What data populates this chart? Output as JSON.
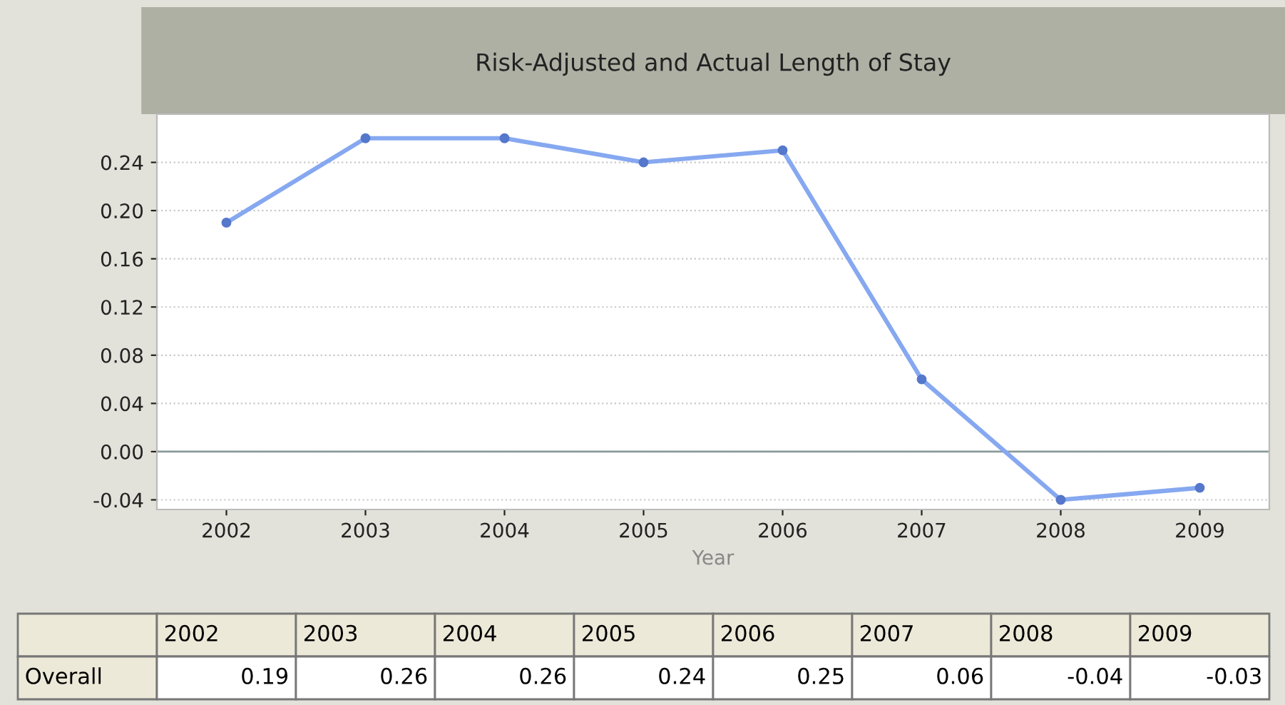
{
  "chart_data": {
    "type": "line",
    "title": "Risk-Adjusted and Actual Length of Stay",
    "xlabel": "Year",
    "categories": [
      "2002",
      "2003",
      "2004",
      "2005",
      "2006",
      "2007",
      "2008",
      "2009"
    ],
    "series": [
      {
        "name": "Overall",
        "color": "#86a8f0",
        "values": [
          0.19,
          0.26,
          0.26,
          0.24,
          0.25,
          0.06,
          -0.04,
          -0.03
        ]
      }
    ],
    "ylim": [
      -0.048,
      0.28
    ],
    "yticks": [
      {
        "value": -0.04,
        "label": "-0.04"
      },
      {
        "value": 0,
        "label": "0.00"
      },
      {
        "value": 0.04,
        "label": "0.04"
      },
      {
        "value": 0.08,
        "label": "0.08"
      },
      {
        "value": 0.12,
        "label": "0.12"
      },
      {
        "value": 0.16,
        "label": "0.16"
      },
      {
        "value": 0.2,
        "label": "0.20"
      },
      {
        "value": 0.24,
        "label": "0.24"
      }
    ],
    "grid": "y",
    "marker": "circle",
    "line_style": "solid",
    "data_labels": true,
    "legend": false,
    "ref_lines": [
      {
        "axis": "y",
        "value": 0,
        "color": "#8a9a9a"
      }
    ]
  }
}
